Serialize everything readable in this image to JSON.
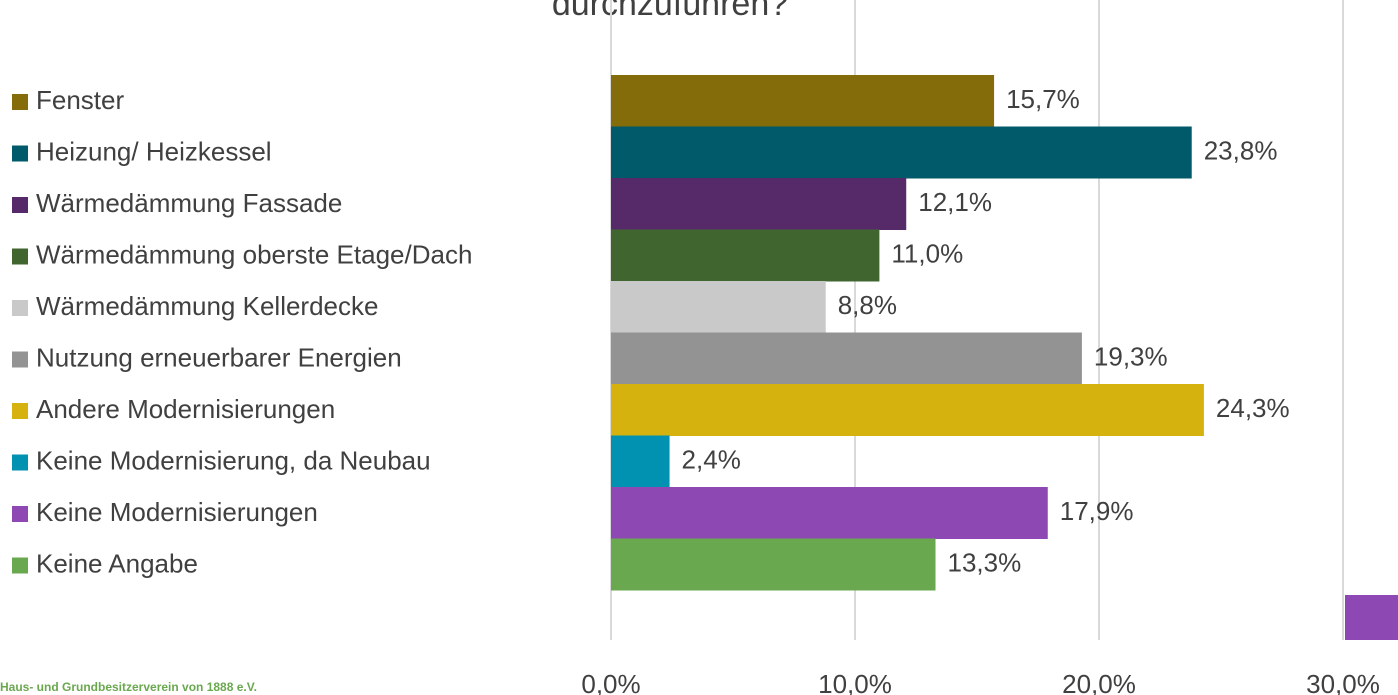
{
  "chart_data": {
    "type": "bar",
    "orientation": "horizontal",
    "title": "durchzuführen?",
    "footer": "Haus- und Grundbesitzerverein von 1888 e.V.",
    "categories": [
      "Fenster",
      "Heizung/ Heizkessel",
      "Wärmedämmung Fassade",
      "Wärmedämmung oberste Etage/Dach",
      "Wärmedämmung Kellerdecke",
      "Nutzung erneuerbarer Energien",
      "Andere Modernisierungen",
      "Keine Modernisierung, da Neubau",
      "Keine Modernisierungen",
      "Keine Angabe"
    ],
    "values": [
      15.7,
      23.8,
      12.1,
      11.0,
      8.8,
      19.3,
      24.3,
      2.4,
      17.9,
      13.3
    ],
    "value_labels": [
      "15,7%",
      "23,8%",
      "12,1%",
      "11,0%",
      "8,8%",
      "19,3%",
      "24,3%",
      "2,4%",
      "17,9%",
      "13,3%"
    ],
    "colors": [
      "#846c0a",
      "#005a69",
      "#562a68",
      "#41652f",
      "#c9c9c9",
      "#939393",
      "#d6b20e",
      "#0092b0",
      "#8d48b4",
      "#6aa84f"
    ],
    "xlim": [
      0,
      30
    ],
    "xticks": [
      {
        "value": 0,
        "label": "0,0%"
      },
      {
        "value": 10,
        "label": "10,0%"
      },
      {
        "value": 20,
        "label": "20,0%"
      },
      {
        "value": 30,
        "label": "30,0%"
      }
    ],
    "grid": true,
    "legend": "left"
  }
}
